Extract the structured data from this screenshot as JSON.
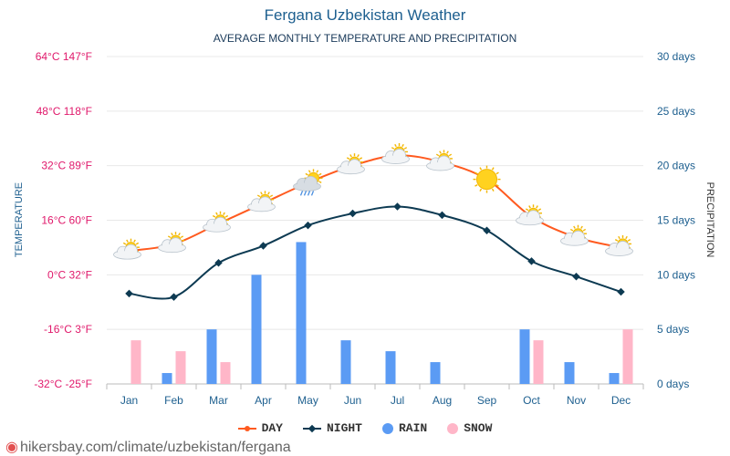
{
  "header": {
    "title": "Fergana Uzbekistan Weather",
    "subtitle": "AVERAGE MONTHLY TEMPERATURE AND PRECIPITATION"
  },
  "footer": {
    "url": "hikersbay.com/climate/uzbekistan/fergana"
  },
  "colors": {
    "day": "#ff5a1f",
    "night": "#0d3a52",
    "rain": "#5b9bf4",
    "snow": "#ffb6c8",
    "left_axis": "#e0196b",
    "right_axis": "#1d5f8f",
    "grid": "#e8e8e8"
  },
  "legend": [
    {
      "label": "DAY",
      "marker": "line-dot",
      "color_key": "day"
    },
    {
      "label": "NIGHT",
      "marker": "line-diamond",
      "color_key": "night"
    },
    {
      "label": "RAIN",
      "marker": "circle",
      "color_key": "rain"
    },
    {
      "label": "SNOW",
      "marker": "circle",
      "color_key": "snow"
    }
  ],
  "chart_data": {
    "type": "line+bar",
    "categories": [
      "Jan",
      "Feb",
      "Mar",
      "Apr",
      "May",
      "Jun",
      "Jul",
      "Aug",
      "Sep",
      "Oct",
      "Nov",
      "Dec"
    ],
    "left_axis": {
      "label": "TEMPERATURE",
      "unit": "°C",
      "range": [
        -32,
        64
      ],
      "ticks": [
        {
          "value": 64,
          "label": "64°C 147°F"
        },
        {
          "value": 48,
          "label": "48°C 118°F"
        },
        {
          "value": 32,
          "label": "32°C 89°F"
        },
        {
          "value": 16,
          "label": "16°C 60°F"
        },
        {
          "value": 0,
          "label": "0°C 32°F"
        },
        {
          "value": -16,
          "label": "-16°C 3°F"
        },
        {
          "value": -32,
          "label": "-32°C -25°F"
        }
      ]
    },
    "right_axis": {
      "label": "PRECIPITATION",
      "unit": "days",
      "range": [
        0,
        30
      ],
      "ticks": [
        {
          "value": 30,
          "label": "30 days"
        },
        {
          "value": 25,
          "label": "25 days"
        },
        {
          "value": 20,
          "label": "20 days"
        },
        {
          "value": 15,
          "label": "15 days"
        },
        {
          "value": 10,
          "label": "10 days"
        },
        {
          "value": 5,
          "label": "5 days"
        },
        {
          "value": 0,
          "label": "0 days"
        }
      ]
    },
    "series": [
      {
        "name": "DAY",
        "type": "line",
        "axis": "left",
        "values": [
          7,
          9,
          15,
          21,
          27,
          32,
          35,
          33,
          28,
          17,
          11,
          8
        ]
      },
      {
        "name": "NIGHT",
        "type": "line",
        "axis": "left",
        "values": [
          -5.5,
          -6.5,
          3.5,
          8.5,
          14.5,
          18,
          20,
          17.5,
          13,
          4,
          -0.5,
          -5
        ]
      },
      {
        "name": "RAIN",
        "type": "bar",
        "axis": "right",
        "values": [
          0,
          1,
          5,
          10,
          13,
          4,
          3,
          2,
          0,
          5,
          2,
          1
        ]
      },
      {
        "name": "SNOW",
        "type": "bar",
        "axis": "right",
        "values": [
          4,
          3,
          2,
          0,
          0,
          0,
          0,
          0,
          0,
          4,
          0,
          5
        ]
      }
    ],
    "weather_icons": [
      "partly-sunny",
      "partly-sunny",
      "partly-sunny",
      "partly-sunny",
      "sun-rain-cloud",
      "partly-sunny",
      "partly-sunny",
      "partly-sunny",
      "sun",
      "partly-sunny",
      "partly-sunny",
      "partly-sunny"
    ]
  }
}
